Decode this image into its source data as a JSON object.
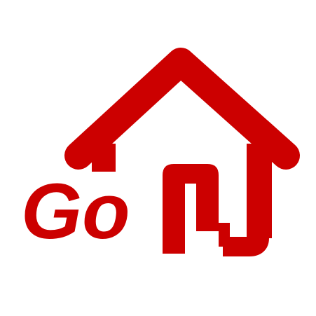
{
  "logo": {
    "wordmark": "Go",
    "primary_color": "#cc0000",
    "background_color": "#ffffff",
    "icon": "house-icon"
  }
}
